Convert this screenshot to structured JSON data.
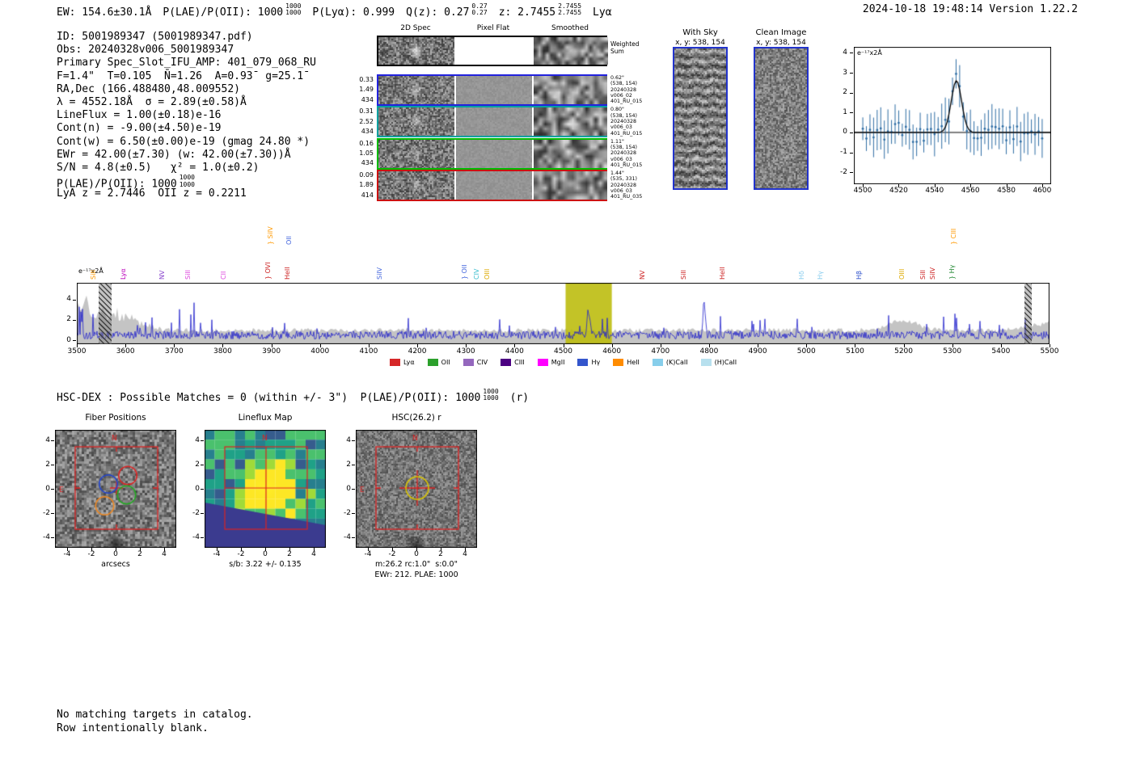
{
  "header": {
    "left_segments": [
      {
        "text": "EW: 154.6±30.1Å"
      },
      {
        "text": "P(LAE)/P(OII): 1000",
        "stack": [
          "1000",
          "1000"
        ]
      },
      {
        "text": "P(Lyα): 0.999"
      },
      {
        "text": "Q(z): 0.27",
        "stack": [
          "0.27",
          "0.27"
        ]
      },
      {
        "text": "z: 2.7455",
        "stack": [
          "2.7455",
          "2.7455"
        ]
      },
      {
        "text": "Lyα"
      }
    ],
    "right": "2024-10-18 19:48:14  Version 1.22.2"
  },
  "info_block": {
    "lines": [
      {
        "text": "ID: 5001989347 (5001989347.pdf)"
      },
      {
        "text": "Obs: 20240328v006_5001989347"
      },
      {
        "text": "Primary Spec_Slot_IFU_AMP: 401_079_068_RU"
      },
      {
        "text": "F=1.4\"  T=0.105  N̄=1.26  A=0.93̄  g=25.1̄"
      },
      {
        "text": "RA,Dec (166.488480,48.009552)"
      },
      {
        "text": "λ = 4552.18Å  σ = 2.89(±0.58)Å"
      },
      {
        "text": "LineFlux = 1.00(±0.18)e-16"
      },
      {
        "text": "Cont(n) = -9.00(±4.50)e-19"
      },
      {
        "text": "Cont(w) = 6.50(±0.00)e-19 (gmag 24.80 *)"
      },
      {
        "text": "EWr = 42.00(±7.30) (w: 42.00(±7.30))Å"
      },
      {
        "text": "S/N = 4.8(±0.5)   χ² = 1.0(±0.2)"
      },
      {
        "text": "P(LAE)/P(OII): 1000",
        "stack": [
          "1000",
          "1000"
        ]
      },
      {
        "text": "LyA z = 2.7446  OII z = 0.2211"
      }
    ]
  },
  "cutout_grid": {
    "column_titles": [
      "2D Spec",
      "Pixel Flat",
      "Smoothed"
    ],
    "weighted_sum_label": [
      "Weighted",
      "Sum"
    ],
    "rows": [
      {
        "color": "#2222dd",
        "left_labels": [
          "0.33",
          "1.49",
          "434"
        ],
        "right_labels": [
          "0.62\"",
          "(538, 154)",
          "20240328",
          "v006_02",
          "401_RU_015"
        ]
      },
      {
        "color": "#00a0a0",
        "left_labels": [
          "0.31",
          "2.52",
          "434"
        ],
        "right_labels": [
          "0.80\"",
          "(538, 154)",
          "20240328",
          "v006_03",
          "401_RU_015"
        ]
      },
      {
        "color": "#00bb00",
        "left_labels": [
          "0.16",
          "1.05",
          "434"
        ],
        "right_labels": [
          "1.11\"",
          "(538, 154)",
          "20240328",
          "v006_03",
          "401_RU_015"
        ]
      },
      {
        "color": "#cc1111",
        "left_labels": [
          "0.09",
          "1.89",
          "414"
        ],
        "right_labels": [
          "1.44\"",
          "(535, 331)",
          "20240328",
          "v006_03",
          "401_RU_035"
        ]
      }
    ]
  },
  "sky_panels": [
    {
      "title": "With Sky",
      "subtitle": "x, y: 538, 154"
    },
    {
      "title": "Clean Image",
      "subtitle": "x, y: 538, 154"
    }
  ],
  "hsc_line": {
    "segments": [
      {
        "text": "HSC-DEX : Possible Matches = 0 (within +/- 3\")  P(LAE)/P(OII): 1000",
        "stack": [
          "1000",
          "1000"
        ]
      },
      {
        "text": "(r)"
      }
    ]
  },
  "footer": {
    "lines": [
      "No matching targets in catalog.",
      "Row intentionally blank."
    ]
  },
  "chart_data": [
    {
      "type": "line",
      "name": "zoomed_1d_spectrum",
      "annotation": "e⁻¹⁷x2Å",
      "xlim": [
        4495,
        4605
      ],
      "ylim": [
        -2.6,
        4.3
      ],
      "xticks": [
        4500,
        4520,
        4540,
        4560,
        4580,
        4600
      ],
      "yticks": [
        4,
        3,
        2,
        1,
        0,
        -1,
        -2
      ],
      "gaussian_fit": {
        "center": 4552.18,
        "sigma": 2.89,
        "amplitude": 2.6,
        "baseline": 0.0,
        "color": "#000000"
      },
      "errorbars": {
        "color": "#2e6da4",
        "spacing_angstrom": 2,
        "noise_rms": 0.5,
        "typical_error": 0.8
      },
      "zero_line": 0,
      "grid": false
    },
    {
      "type": "area+line",
      "name": "full_spectrum",
      "annotation": "e⁻¹⁷x2Å",
      "xlim": [
        3500,
        5500
      ],
      "ylim": [
        0,
        5.6
      ],
      "xticks": [
        3500,
        3600,
        3700,
        3800,
        3900,
        4000,
        4100,
        4200,
        4300,
        4400,
        4500,
        4600,
        4700,
        4800,
        4900,
        5000,
        5100,
        5200,
        5300,
        5400,
        5500
      ],
      "yticks": [
        0,
        2,
        4
      ],
      "spectrum_color": "#2222cc",
      "error_area_color": "#c4c4c4",
      "highlight_region": {
        "x0": 4505,
        "x1": 4600,
        "color": "#bdbd10"
      },
      "hatched_regions": [
        {
          "x0": 3545,
          "x1": 3572
        },
        {
          "x0": 5448,
          "x1": 5463
        }
      ],
      "features": [
        {
          "wavelength": 4552.18,
          "amplitude": 2.4,
          "sigma": 3.0,
          "note": "detected emission line (Lyα candidate)"
        },
        {
          "wavelength": 4790,
          "amplitude": 3.3,
          "sigma": 2.2,
          "note": "strong unrelated emission spike"
        }
      ],
      "line_labels": [
        {
          "label": "SiII",
          "wavelength": 3528,
          "color": "#ff9900",
          "tier": 0
        },
        {
          "label": "Lyα",
          "wavelength": 3589,
          "color": "#bb00bb",
          "tier": 0
        },
        {
          "label": "NV",
          "wavelength": 3669,
          "color": "#8844cc",
          "tier": 0
        },
        {
          "label": "SiII",
          "wavelength": 3723,
          "color": "#dd44dd",
          "tier": 0
        },
        {
          "label": "CII",
          "wavelength": 3796,
          "color": "#dd44dd",
          "tier": 0
        },
        {
          "label": "} OVI",
          "wavelength": 3887,
          "color": "#cc2222",
          "tier": 0
        },
        {
          "label": "} SiIV",
          "wavelength": 3893,
          "color": "#ff9900",
          "tier": 1
        },
        {
          "label": "OII",
          "wavelength": 3930,
          "color": "#4466dd",
          "tier": 1
        },
        {
          "label": "HeII",
          "wavelength": 3927,
          "color": "#cc2222",
          "tier": 0
        },
        {
          "label": "SiIV",
          "wavelength": 4116,
          "color": "#4466dd",
          "tier": 0
        },
        {
          "label": "} OII",
          "wavelength": 4292,
          "color": "#4466dd",
          "tier": 0
        },
        {
          "label": "CIV",
          "wavelength": 4317,
          "color": "#33bbcc",
          "tier": 0
        },
        {
          "label": "OIII",
          "wavelength": 4338,
          "color": "#ddaa00",
          "tier": 0
        },
        {
          "label": "NV",
          "wavelength": 4657,
          "color": "#cc2222",
          "tier": 0
        },
        {
          "label": "SiII",
          "wavelength": 4742,
          "color": "#cc2222",
          "tier": 0
        },
        {
          "label": "HeII",
          "wavelength": 4821,
          "color": "#cc2222",
          "tier": 0
        },
        {
          "label": "Hδ",
          "wavelength": 4985,
          "color": "#88ccee",
          "tier": 0
        },
        {
          "label": "Hγ",
          "wavelength": 5023,
          "color": "#88ccee",
          "tier": 0
        },
        {
          "label": "Hβ",
          "wavelength": 5102,
          "color": "#3355cc",
          "tier": 0
        },
        {
          "label": "OIII",
          "wavelength": 5191,
          "color": "#ddaa00",
          "tier": 0
        },
        {
          "label": "SiII",
          "wavelength": 5234,
          "color": "#cc2222",
          "tier": 0
        },
        {
          "label": "SiIV",
          "wavelength": 5254,
          "color": "#cc2222",
          "tier": 0
        },
        {
          "label": "} Hγ",
          "wavelength": 5294,
          "color": "#228833",
          "tier": 0
        },
        {
          "label": "} CIII",
          "wavelength": 5298,
          "color": "#ff9900",
          "tier": 1
        }
      ],
      "legend": [
        {
          "label": "Lyα",
          "color": "#d62728"
        },
        {
          "label": "OII",
          "color": "#2ca02c"
        },
        {
          "label": "CIV",
          "color": "#9467bd"
        },
        {
          "label": "CIII",
          "color": "#4b0082"
        },
        {
          "label": "MgII",
          "color": "#ff00ff"
        },
        {
          "label": "Hγ",
          "color": "#3355cc"
        },
        {
          "label": "HeII",
          "color": "#ff8c00"
        },
        {
          "label": "(K)CaII",
          "color": "#87ceeb"
        },
        {
          "label": "(H)CaII",
          "color": "#b7e0ee"
        }
      ]
    },
    {
      "type": "image",
      "name": "fiber_positions_cutout",
      "title": "Fiber Positions",
      "xlabel": "arcsecs",
      "xticks": [
        -4,
        -2,
        0,
        2,
        4
      ],
      "yticks": [
        4,
        2,
        0,
        -2,
        -4
      ],
      "compass": {
        "north": "N",
        "east": "E"
      },
      "aperture_box_color": "#dd2222",
      "fiber_radius_arcsec": 0.75,
      "fibers": [
        {
          "color": "#2244cc",
          "x": -0.6,
          "y": 0.4
        },
        {
          "color": "#dd2222",
          "x": 1.0,
          "y": 1.1
        },
        {
          "color": "#ee8822",
          "x": -0.9,
          "y": -1.4
        },
        {
          "color": "#22aa22",
          "x": 0.9,
          "y": -0.5
        }
      ]
    },
    {
      "type": "heatmap",
      "name": "lineflux_map",
      "title": "Lineflux Map",
      "xlabel": "s/b: 3.22 +/- 0.135",
      "xticks": [
        -4,
        -2,
        0,
        2,
        4
      ],
      "yticks": [
        4,
        2,
        0,
        -2,
        -4
      ],
      "colormap": "viridis",
      "compass": {
        "north": "N"
      },
      "crosshair_color": "#dd2222"
    },
    {
      "type": "image",
      "name": "hsc_r_cutout",
      "title": "HSC(26.2) r",
      "xlabel": "m:26.2 rc:1.0\"  s:0.0\"",
      "xlabel2": "EWr: 212. PLAE: 1000",
      "xticks": [
        -4,
        -2,
        0,
        2,
        4
      ],
      "yticks": [
        4,
        2,
        0,
        -2,
        -4
      ],
      "compass": {
        "north": "N",
        "east": "E"
      },
      "aperture_circle": {
        "color": "#d9c400",
        "radius_arcsec": 1.0
      },
      "crosshair_color": "#dd2222"
    }
  ]
}
